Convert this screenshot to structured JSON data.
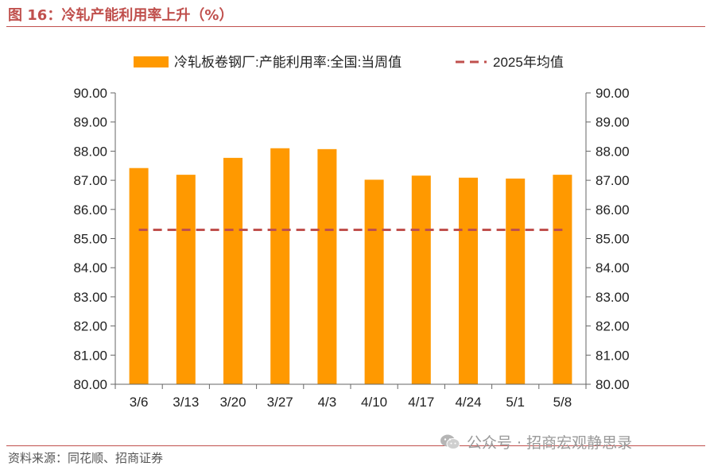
{
  "figure": {
    "title": "图 16：冷轧产能利用率上升（%）",
    "source": "资料来源：同花顺、招商证券",
    "watermark": "公众号 · 招商宏观静思录",
    "watermark_icon": "wechat-icon"
  },
  "chart_data": {
    "type": "bar",
    "categories": [
      "3/6",
      "3/13",
      "3/20",
      "3/27",
      "4/3",
      "4/10",
      "4/17",
      "4/24",
      "5/1",
      "5/8"
    ],
    "series": [
      {
        "name": "冷轧板卷钢厂:产能利用率:全国:当周值",
        "type": "bar",
        "color": "#ff9900",
        "values": [
          87.42,
          87.19,
          87.77,
          88.1,
          88.07,
          87.02,
          87.16,
          87.09,
          87.06,
          87.19
        ]
      },
      {
        "name": "2025年均值",
        "type": "dashed-line",
        "color": "#c0504d",
        "values": [
          85.3,
          85.3,
          85.3,
          85.3,
          85.3,
          85.3,
          85.3,
          85.3,
          85.3,
          85.3
        ]
      }
    ],
    "ylim": [
      80,
      90
    ],
    "yticks": [
      "80.00",
      "81.00",
      "82.00",
      "83.00",
      "84.00",
      "85.00",
      "86.00",
      "87.00",
      "88.00",
      "89.00",
      "90.00"
    ],
    "y2lim": [
      80,
      90
    ],
    "y2ticks": [
      "80.00",
      "81.00",
      "82.00",
      "83.00",
      "84.00",
      "85.00",
      "86.00",
      "87.00",
      "88.00",
      "89.00",
      "90.00"
    ],
    "legend_position": "top",
    "grid": false
  }
}
